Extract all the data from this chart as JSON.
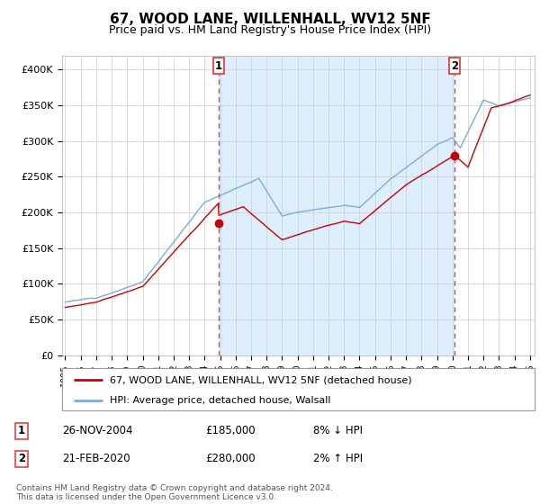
{
  "title": "67, WOOD LANE, WILLENHALL, WV12 5NF",
  "subtitle": "Price paid vs. HM Land Registry's House Price Index (HPI)",
  "ylim": [
    0,
    420000
  ],
  "yticks": [
    0,
    50000,
    100000,
    150000,
    200000,
    250000,
    300000,
    350000,
    400000
  ],
  "ytick_labels": [
    "£0",
    "£50K",
    "£100K",
    "£150K",
    "£200K",
    "£250K",
    "£300K",
    "£350K",
    "£400K"
  ],
  "start_year": 1995,
  "end_year": 2025,
  "sale1_date": "26-NOV-2004",
  "sale1_price": 185000,
  "sale1_label": "1",
  "sale1_hpi_diff": "8% ↓ HPI",
  "sale1_x": 2004.9,
  "sale2_date": "21-FEB-2020",
  "sale2_price": 280000,
  "sale2_label": "2",
  "sale2_hpi_diff": "2% ↑ HPI",
  "sale2_x": 2020.13,
  "hpi_color": "#7aaddb",
  "price_color": "#cc0000",
  "vline_color": "#dd4444",
  "fill_color": "#ddeeff",
  "legend_label1": "67, WOOD LANE, WILLENHALL, WV12 5NF (detached house)",
  "legend_label2": "HPI: Average price, detached house, Walsall",
  "footnote": "Contains HM Land Registry data © Crown copyright and database right 2024.\nThis data is licensed under the Open Government Licence v3.0.",
  "background_color": "#ffffff",
  "grid_color": "#cccccc"
}
